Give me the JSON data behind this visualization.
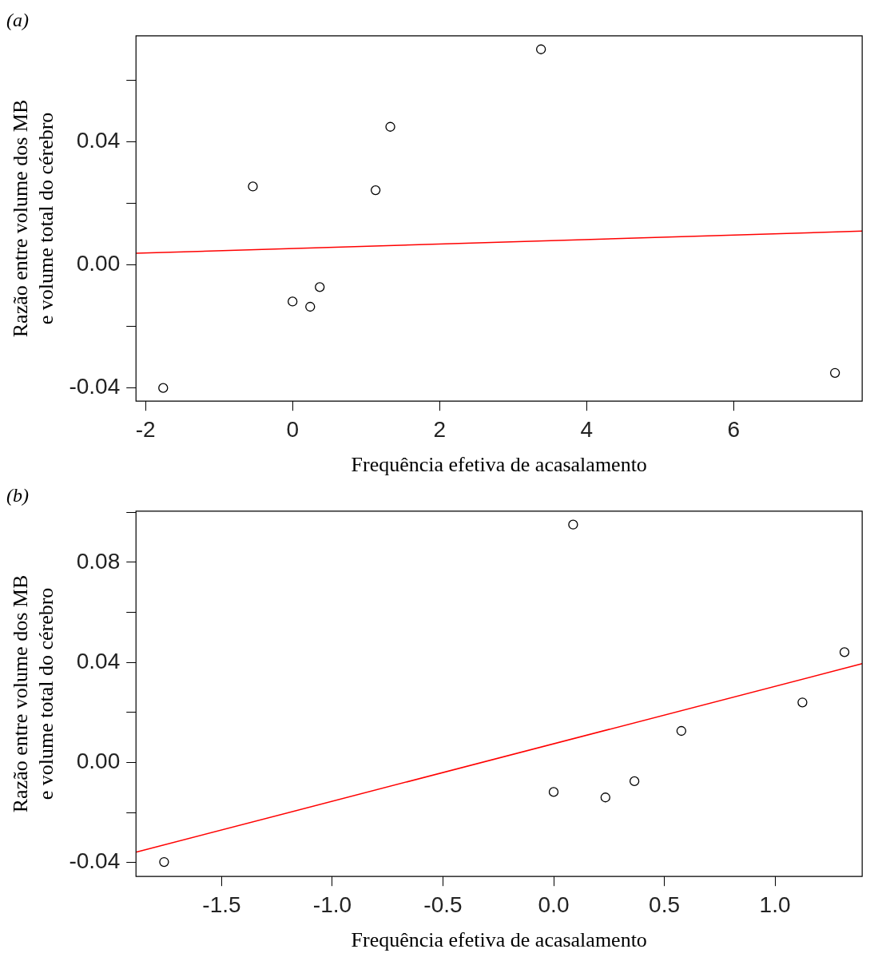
{
  "chart_data": [
    {
      "type": "scatter",
      "title": "(a)",
      "xlabel": "Frequência efetiva de acasalamento",
      "ylabel": "Razão entre volume dos MB\ne volume total do cérebro",
      "grid": false,
      "legend": false,
      "xlim": [
        -2.13,
        7.75
      ],
      "ylim": [
        -0.0443,
        0.0745
      ],
      "xticks": [
        -2,
        0,
        2,
        4,
        6
      ],
      "yticks": [
        -0.04,
        {
          "value": -0.02,
          "label": null
        },
        {
          "value": 0,
          "label": "0.00"
        },
        {
          "value": 0.02,
          "label": null
        },
        0.04,
        {
          "value": 0.06,
          "label": null
        }
      ],
      "series": [
        {
          "color": "#000000",
          "marker": "circle",
          "x": [
            -1.76,
            -0.54,
            0.0,
            0.24,
            0.37,
            1.13,
            1.33,
            3.38,
            7.38
          ],
          "values": [
            -0.04,
            0.0255,
            -0.0119,
            -0.0136,
            -0.0072,
            0.0243,
            0.0449,
            0.0701,
            -0.0351
          ]
        },
        {
          "type": "line",
          "color": "#ff0000",
          "marker": "none",
          "x": [
            -2.13,
            7.75
          ],
          "values": [
            0.0038,
            0.011
          ]
        }
      ]
    },
    {
      "type": "scatter",
      "title": "(b)",
      "xlabel": "Frequência efetiva de acasalamento",
      "ylabel": "Razão entre volume dos MB\ne volume total do cérebro",
      "grid": false,
      "legend": false,
      "xlim": [
        -1.887,
        1.394
      ],
      "ylim": [
        -0.0456,
        0.1005
      ],
      "xticks": [
        -1.5,
        {
          "value": -1,
          "label": "-1.0"
        },
        -0.5,
        {
          "value": 0,
          "label": "0.0"
        },
        0.5,
        {
          "value": 1,
          "label": "1.0"
        }
      ],
      "yticks": [
        -0.04,
        {
          "value": -0.02,
          "label": null
        },
        {
          "value": 0,
          "label": "0.00"
        },
        {
          "value": 0.02,
          "label": null
        },
        0.04,
        {
          "value": 0.06,
          "label": null
        },
        0.08,
        {
          "value": 0.1,
          "label": null
        }
      ],
      "series": [
        {
          "color": "#000000",
          "marker": "circle",
          "x": [
            -1.76,
            0.0,
            0.088,
            0.234,
            0.365,
            0.577,
            1.124,
            1.314
          ],
          "values": [
            -0.0398,
            -0.0118,
            0.0951,
            -0.014,
            -0.0075,
            0.0126,
            0.024,
            0.0441
          ]
        },
        {
          "type": "line",
          "color": "#ff0000",
          "marker": "none",
          "x": [
            -1.887,
            1.394
          ],
          "values": [
            -0.0359,
            0.0395
          ]
        }
      ]
    }
  ]
}
